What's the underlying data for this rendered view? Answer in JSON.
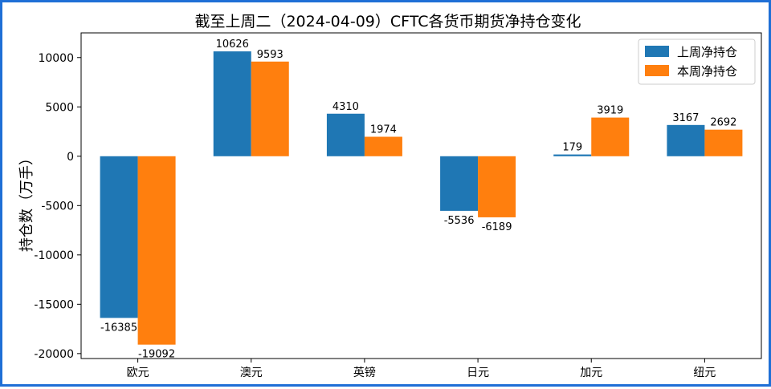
{
  "chart_data": {
    "type": "bar",
    "title": "截至上周二（2024-04-09）CFTC各货币期货净持仓变化",
    "ylabel": "持仓数（万手）",
    "xlabel": "",
    "categories": [
      "欧元",
      "澳元",
      "英镑",
      "日元",
      "加元",
      "纽元"
    ],
    "series": [
      {
        "name": "上周净持仓",
        "color": "#1f77b4",
        "values": [
          -16385,
          10626,
          4310,
          -5536,
          179,
          3167
        ]
      },
      {
        "name": "本周净持仓",
        "color": "#ff7f0e",
        "values": [
          -19092,
          9593,
          1974,
          -6189,
          3919,
          2692
        ]
      }
    ],
    "ylim": [
      -20500,
      12500
    ],
    "yticks": [
      10000,
      5000,
      0,
      -5000,
      -10000,
      -15000,
      -20000
    ],
    "legend": "top-right",
    "grid": false
  }
}
